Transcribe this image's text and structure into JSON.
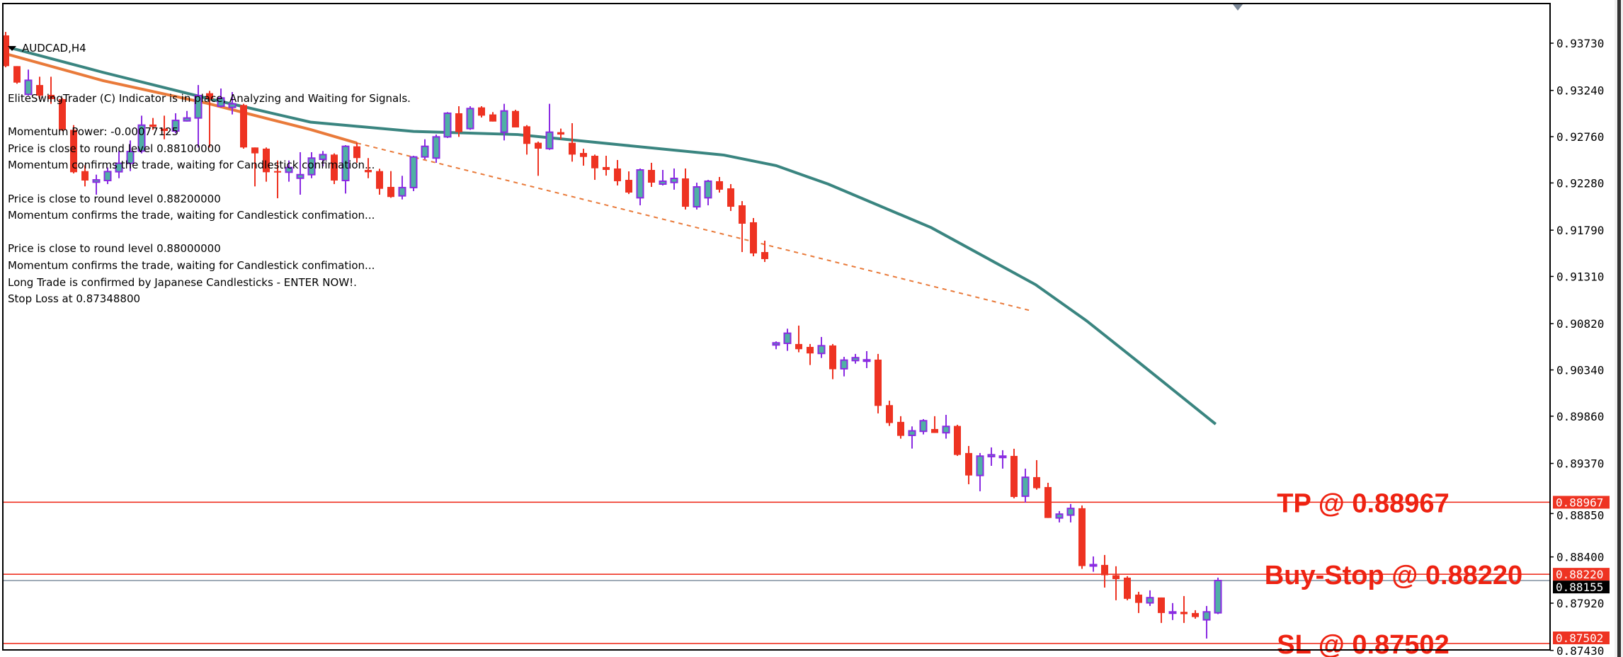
{
  "window": {
    "symbol_timeframe": "AUDCAD,H4"
  },
  "info_lines": [
    "EliteSwingTrader (C) Indicator is in place, Analyzing and Waiting for Signals.",
    "",
    "Momentum Power: -0.00077125",
    "Price is close to round level 0.88100000",
    "Momentum confirms the trade, waiting for Candlestick confimation...",
    "",
    "Price is close to round level 0.88200000",
    "Momentum confirms the trade, waiting for Candlestick confimation...",
    "",
    "Price is close to round level 0.88000000",
    "Momentum confirms the trade, waiting for Candlestick confimation...",
    "Long Trade is confirmed by Japanese Candlesticks - ENTER NOW!.",
    "Stop Loss at 0.87348800"
  ],
  "colors": {
    "bull_body": "#4fb0a5",
    "bull_outline": "#8a2be2",
    "bear": "#ee3322",
    "ma_slow": "#3a8580",
    "ma_fast": "#e97a3a",
    "level_line": "#ee2211",
    "bid_line": "#8090a0"
  },
  "chart_data": {
    "type": "candlestick",
    "price_ticks": [
      "0.93730",
      "0.93240",
      "0.92760",
      "0.92280",
      "0.91790",
      "0.91310",
      "0.90820",
      "0.90340",
      "0.89860",
      "0.89370",
      "0.88850",
      "0.88400",
      "0.87920",
      "0.87430"
    ],
    "candles_ohlc": [
      [
        0.93811,
        0.93847,
        0.9348,
        0.93492
      ],
      [
        0.93492,
        0.93492,
        0.93309,
        0.93321
      ],
      [
        0.93199,
        0.93456,
        0.93186,
        0.93345
      ],
      [
        0.93296,
        0.93382,
        0.9315,
        0.93186
      ],
      [
        0.93194,
        0.93382,
        0.93101,
        0.9315
      ],
      [
        0.9315,
        0.93162,
        0.92819,
        0.92831
      ],
      [
        0.92831,
        0.9288,
        0.92379,
        0.92391
      ],
      [
        0.92403,
        0.92464,
        0.92244,
        0.92305
      ],
      [
        0.92288,
        0.92366,
        0.92158,
        0.92312
      ],
      [
        0.92305,
        0.9244,
        0.92268,
        0.92398
      ],
      [
        0.92396,
        0.92611,
        0.92329,
        0.92484
      ],
      [
        0.92484,
        0.92721,
        0.92403,
        0.92606
      ],
      [
        0.92611,
        0.92978,
        0.92587,
        0.9288
      ],
      [
        0.92886,
        0.92954,
        0.92831,
        0.92861
      ],
      [
        0.92844,
        0.92978,
        0.92733,
        0.92819
      ],
      [
        0.92819,
        0.93003,
        0.92795,
        0.92929
      ],
      [
        0.92924,
        0.93027,
        0.92917,
        0.92954
      ],
      [
        0.92954,
        0.93296,
        0.92648,
        0.93186
      ],
      [
        0.93211,
        0.93235,
        0.92648,
        0.9315
      ],
      [
        0.93076,
        0.9326,
        0.93064,
        0.93162
      ],
      [
        0.93064,
        0.93223,
        0.92991,
        0.93101
      ],
      [
        0.93088,
        0.93101,
        0.92636,
        0.92648
      ],
      [
        0.92648,
        0.92648,
        0.92244,
        0.92587
      ],
      [
        0.92636,
        0.92648,
        0.92293,
        0.92391
      ],
      [
        0.92403,
        0.92513,
        0.92121,
        0.92391
      ],
      [
        0.92391,
        0.92513,
        0.92293,
        0.9244
      ],
      [
        0.92329,
        0.92599,
        0.92158,
        0.92366
      ],
      [
        0.92366,
        0.92599,
        0.92329,
        0.92538
      ],
      [
        0.92525,
        0.92611,
        0.92452,
        0.92574
      ],
      [
        0.92574,
        0.92587,
        0.92268,
        0.92305
      ],
      [
        0.92305,
        0.92672,
        0.9217,
        0.9266
      ],
      [
        0.9266,
        0.92697,
        0.92489,
        0.92538
      ],
      [
        0.92415,
        0.92538,
        0.92329,
        0.92391
      ],
      [
        0.92403,
        0.92427,
        0.92158,
        0.92219
      ],
      [
        0.92239,
        0.92403,
        0.92126,
        0.92134
      ],
      [
        0.92146,
        0.92354,
        0.92109,
        0.92232
      ],
      [
        0.92232,
        0.92562,
        0.92195,
        0.9255
      ],
      [
        0.9255,
        0.92733,
        0.92525,
        0.9266
      ],
      [
        0.92538,
        0.92782,
        0.92489,
        0.92758
      ],
      [
        0.92758,
        0.93015,
        0.92746,
        0.93003
      ],
      [
        0.93003,
        0.93076,
        0.92758,
        0.92807
      ],
      [
        0.92844,
        0.93076,
        0.92831,
        0.93052
      ],
      [
        0.93064,
        0.93076,
        0.92959,
        0.92978
      ],
      [
        0.92991,
        0.93015,
        0.92917,
        0.92917
      ],
      [
        0.92807,
        0.93101,
        0.92721,
        0.93027
      ],
      [
        0.93027,
        0.93039,
        0.92856,
        0.92856
      ],
      [
        0.92868,
        0.9288,
        0.92574,
        0.92685
      ],
      [
        0.92697,
        0.92709,
        0.92354,
        0.92636
      ],
      [
        0.92636,
        0.93101,
        0.92623,
        0.92807
      ],
      [
        0.92807,
        0.92844,
        0.92733,
        0.92782
      ],
      [
        0.92697,
        0.929,
        0.92501,
        0.92574
      ],
      [
        0.92591,
        0.92635,
        0.92459,
        0.9255
      ],
      [
        0.92562,
        0.92574,
        0.92312,
        0.92432
      ],
      [
        0.92445,
        0.92562,
        0.92356,
        0.92415
      ],
      [
        0.9243,
        0.92518,
        0.92254,
        0.92298
      ],
      [
        0.92312,
        0.924,
        0.92165,
        0.9218
      ],
      [
        0.92126,
        0.9243,
        0.92048,
        0.92415
      ],
      [
        0.92415,
        0.92489,
        0.92239,
        0.92283
      ],
      [
        0.92268,
        0.92415,
        0.92254,
        0.92298
      ],
      [
        0.92285,
        0.9243,
        0.9221,
        0.92327
      ],
      [
        0.92327,
        0.9243,
        0.92004,
        0.92033
      ],
      [
        0.92033,
        0.92283,
        0.92004,
        0.92239
      ],
      [
        0.92126,
        0.92312,
        0.92048,
        0.92298
      ],
      [
        0.92298,
        0.92342,
        0.9218,
        0.9221
      ],
      [
        0.92224,
        0.92268,
        0.91989,
        0.92033
      ],
      [
        0.92048,
        0.92092,
        0.91563,
        0.91857
      ],
      [
        0.91872,
        0.91916,
        0.91519,
        0.91549
      ],
      [
        0.91563,
        0.91681,
        0.9146,
        0.9149
      ],
      [
        0.90599,
        0.90636,
        0.90555,
        0.90621
      ],
      [
        0.90616,
        0.90768,
        0.90538,
        0.90721
      ],
      [
        0.90609,
        0.908,
        0.90523,
        0.90555
      ],
      [
        0.90579,
        0.90609,
        0.90391,
        0.90511
      ],
      [
        0.90511,
        0.90682,
        0.90464,
        0.90591
      ],
      [
        0.90594,
        0.90609,
        0.90244,
        0.90347
      ],
      [
        0.90352,
        0.90476,
        0.90273,
        0.90442
      ],
      [
        0.90437,
        0.90506,
        0.90405,
        0.90467
      ],
      [
        0.90442,
        0.90535,
        0.90359,
        0.90445
      ],
      [
        0.90447,
        0.90506,
        0.89889,
        0.89967
      ],
      [
        0.89975,
        0.90021,
        0.89759,
        0.89789
      ],
      [
        0.89801,
        0.8986,
        0.89627,
        0.89656
      ],
      [
        0.89661,
        0.89754,
        0.89524,
        0.89708
      ],
      [
        0.89703,
        0.8983,
        0.89671,
        0.89813
      ],
      [
        0.89727,
        0.8986,
        0.89686,
        0.89686
      ],
      [
        0.89688,
        0.89874,
        0.89627,
        0.89754
      ],
      [
        0.89759,
        0.89771,
        0.89448,
        0.89458
      ],
      [
        0.89478,
        0.89551,
        0.89154,
        0.89245
      ],
      [
        0.89245,
        0.89478,
        0.89081,
        0.89446
      ],
      [
        0.89441,
        0.89536,
        0.89345,
        0.8946
      ],
      [
        0.89441,
        0.89507,
        0.89316,
        0.89446
      ],
      [
        0.89448,
        0.89522,
        0.89008,
        0.89022
      ],
      [
        0.8903,
        0.89316,
        0.88964,
        0.89226
      ],
      [
        0.89228,
        0.89404,
        0.89098,
        0.89113
      ],
      [
        0.89125,
        0.89169,
        0.88804,
        0.88804
      ],
      [
        0.88804,
        0.88876,
        0.88758,
        0.88844
      ],
      [
        0.88834,
        0.88949,
        0.88758,
        0.88903
      ],
      [
        0.88905,
        0.88934,
        0.88276,
        0.88305
      ],
      [
        0.88315,
        0.88405,
        0.88246,
        0.8832
      ],
      [
        0.88317,
        0.8842,
        0.88082,
        0.8821
      ],
      [
        0.8821,
        0.88303,
        0.8795,
        0.8817
      ],
      [
        0.88185,
        0.882,
        0.8795,
        0.87965
      ],
      [
        0.88009,
        0.88038,
        0.87818,
        0.87923
      ],
      [
        0.87923,
        0.88053,
        0.87891,
        0.87977
      ],
      [
        0.87979,
        0.87979,
        0.87715,
        0.87818
      ],
      [
        0.87823,
        0.87921,
        0.87745,
        0.8783
      ],
      [
        0.8783,
        0.87994,
        0.87715,
        0.87806
      ],
      [
        0.87818,
        0.87847,
        0.87759,
        0.87776
      ],
      [
        0.87747,
        0.87891,
        0.87553,
        0.8783
      ],
      [
        0.8782,
        0.88185,
        0.87806,
        0.88155
      ]
    ],
    "ma_slow_points": [
      [
        0,
        0.93695
      ],
      [
        8.6,
        0.93427
      ],
      [
        17.8,
        0.93158
      ],
      [
        26.9,
        0.92911
      ],
      [
        36,
        0.92815
      ],
      [
        45.2,
        0.92782
      ],
      [
        54.3,
        0.92675
      ],
      [
        63.4,
        0.92569
      ],
      [
        68,
        0.9246
      ],
      [
        72.6,
        0.92268
      ],
      [
        81.7,
        0.91816
      ],
      [
        90.9,
        0.91225
      ],
      [
        95.4,
        0.9085
      ],
      [
        100,
        0.9042
      ],
      [
        106.8,
        0.89778
      ]
    ],
    "ma_fast_points": [
      [
        0,
        0.9362
      ],
      [
        8.6,
        0.93341
      ],
      [
        17.8,
        0.93106
      ],
      [
        26.9,
        0.92834
      ],
      [
        31,
        0.92694
      ]
    ],
    "ma_fast_projection": [
      [
        31,
        0.92694
      ],
      [
        90.4,
        0.90957
      ]
    ],
    "bid": {
      "price": 0.88155,
      "label": "0.88155"
    },
    "levels": [
      {
        "name": "tp",
        "price": 0.88967,
        "axis_label": "0.88967",
        "text": "TP @ 0.88967"
      },
      {
        "name": "buy-stop",
        "price": 0.8822,
        "axis_label": "0.88220",
        "text": "Buy-Stop @ 0.88220"
      },
      {
        "name": "sl",
        "price": 0.87502,
        "axis_label": "0.87502",
        "text": "SL @ 0.87502"
      }
    ]
  }
}
